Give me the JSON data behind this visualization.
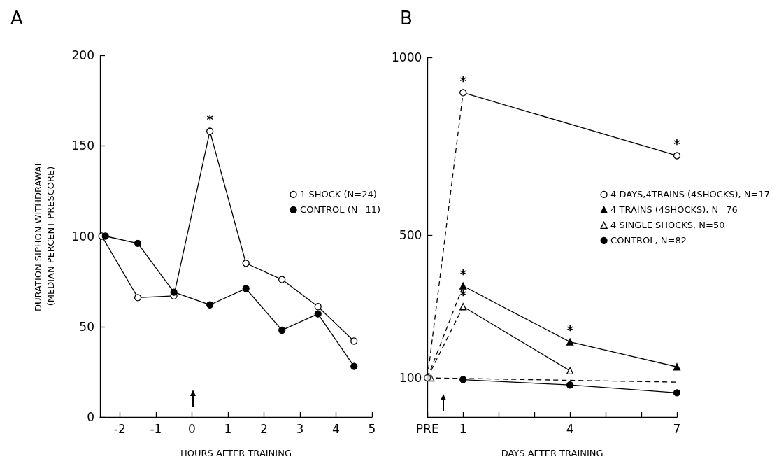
{
  "chart_data": [
    {
      "type": "line",
      "title": "A",
      "xlabel": "HOURS AFTER TRAINING",
      "ylabel": "DURATION SIPHON WITHDRAWAL\n(MEDIAN PERCENT PRESCORE)",
      "x": [
        -2.5,
        -1.5,
        -0.5,
        0.5,
        1.5,
        2.5,
        3.5,
        4.5
      ],
      "xlim": [
        -2.55,
        5
      ],
      "xticks": [
        -2,
        -1,
        0,
        1,
        2,
        3,
        4,
        5
      ],
      "ylim": [
        0,
        200
      ],
      "yticks": [
        0,
        50,
        100,
        150,
        200
      ],
      "legend": "right",
      "series": [
        {
          "name": "1 SHOCK (N=24)",
          "color": "#ffffff",
          "marker": "circle",
          "values": [
            100,
            66,
            67,
            158,
            85,
            76,
            61,
            42
          ]
        },
        {
          "name": "CONTROL (N=11)",
          "color": "#000000",
          "marker": "circle",
          "x": [
            -2.4,
            -1.5,
            -0.5,
            0.5,
            1.5,
            2.5,
            3.5,
            4.5
          ],
          "values": [
            100,
            96,
            69,
            62,
            71,
            48,
            57,
            28
          ]
        }
      ],
      "annotations": [
        {
          "text": "*",
          "x": 0.5,
          "y": 158
        }
      ]
    },
    {
      "type": "line",
      "title": "B",
      "xlabel": "DAYS AFTER TRAINING",
      "xlim": [
        0,
        7
      ],
      "xticks": [
        {
          "value": 0,
          "label": "PRE"
        },
        1,
        {
          "value": 2,
          "label": null
        },
        {
          "value": 3,
          "label": null
        },
        4,
        {
          "value": 5,
          "label": null
        },
        {
          "value": 6,
          "label": null
        },
        7
      ],
      "ylim": [
        -10,
        1000
      ],
      "yticks": [
        100,
        500,
        1000
      ],
      "legend": "right",
      "series": [
        {
          "name": "4 DAYS,4TRAINS (4SHOCKS), N=17",
          "color": "#ffffff",
          "marker": "circle",
          "x": [
            1,
            7
          ],
          "values": [
            901,
            724
          ]
        },
        {
          "name": "4 TRAINS (4SHOCKS), N=76",
          "color": "#000000",
          "marker": "triangle",
          "x": [
            1,
            4,
            7
          ],
          "values": [
            358,
            201,
            131
          ]
        },
        {
          "name": "4 SINGLE SHOCKS, N=50",
          "color": "#ffffff",
          "marker": "triangle",
          "x": [
            1,
            4
          ],
          "values": [
            300,
            120
          ]
        },
        {
          "name": "CONTROL, N=82",
          "color": "#000000",
          "marker": "circle",
          "x": [
            1,
            4,
            7
          ],
          "values": [
            95,
            80,
            58
          ]
        },
        {
          "color": "#000000",
          "marker": "none",
          "line_style": "dashed",
          "x": [
            0,
            1
          ],
          "values": [
            100,
            901
          ]
        },
        {
          "color": "#000000",
          "marker": "none",
          "line_style": "dashed",
          "x": [
            0,
            1
          ],
          "values": [
            100,
            358
          ]
        },
        {
          "color": "#000000",
          "marker": "none",
          "line_style": "dashed",
          "x": [
            0,
            1
          ],
          "values": [
            100,
            300
          ]
        },
        {
          "type": "scatter",
          "color": "#ffffff",
          "marker": "triangle",
          "x": [
            0.1
          ],
          "values": [
            100
          ]
        },
        {
          "type": "scatter",
          "color": "#ffffff",
          "marker": "circle",
          "x": [
            0
          ],
          "values": [
            100
          ]
        },
        {
          "color": "#000000",
          "marker": "none",
          "line_style": "dashed",
          "x": [
            0,
            7
          ],
          "values": [
            100,
            88
          ]
        }
      ],
      "annotations": [
        {
          "text": "*",
          "x": 1,
          "y": 901
        },
        {
          "text": "*",
          "x": 7,
          "y": 724
        },
        {
          "text": "*",
          "x": 1,
          "y": 358
        },
        {
          "text": "*",
          "x": 1,
          "y": 300
        },
        {
          "text": "*",
          "x": 4,
          "y": 201
        }
      ]
    }
  ]
}
